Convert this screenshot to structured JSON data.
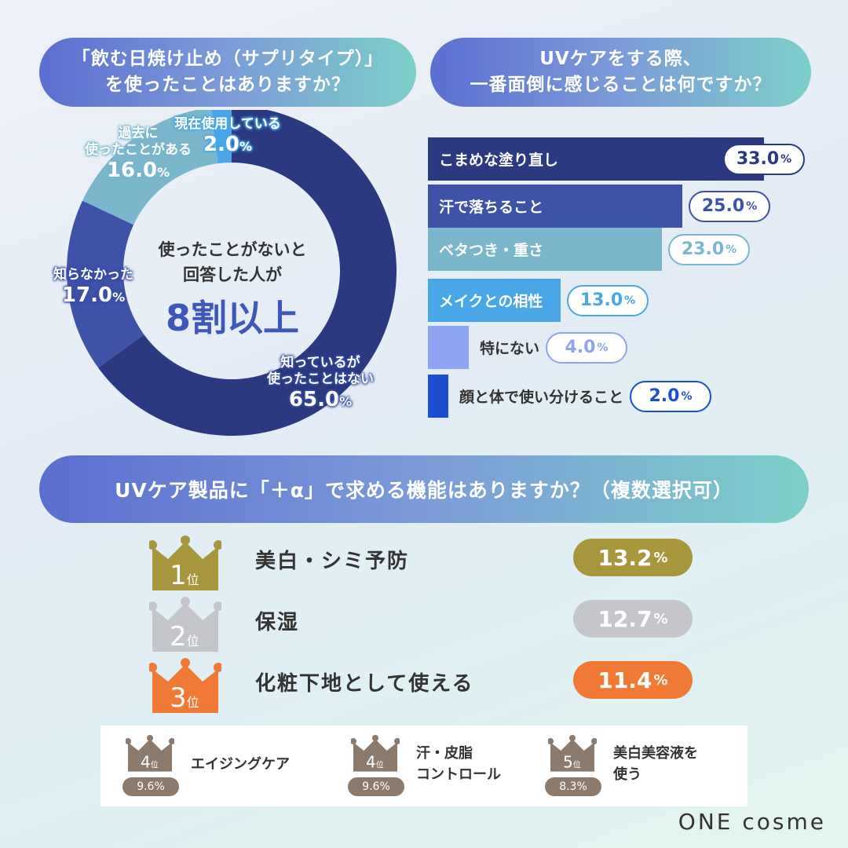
{
  "q1": {
    "title_line1": "「飲む日焼け止め（サプリタイプ）」",
    "title_line2": "を使ったことはありますか？"
  },
  "q2": {
    "title_line1": "UVケアをする際、",
    "title_line2": "一番面倒に感じることは何ですか？"
  },
  "q3": {
    "title": "UVケア製品に「＋α」で求める機能はありますか？（複数選択可）"
  },
  "donut_center": {
    "line1": "使ったことがないと",
    "line2": "回答した人が",
    "big": "8割以上"
  },
  "chart_data": [
    {
      "type": "pie",
      "title": "「飲む日焼け止め（サプリタイプ）」を使ったことはありますか？",
      "slices": [
        {
          "label_lines": [
            "知っているが",
            "使ったことはない"
          ],
          "label": "知っているが使ったことはない",
          "value": 65.0,
          "pct": "65.0",
          "color": "#2b3a80"
        },
        {
          "label_lines": [
            "知らなかった"
          ],
          "label": "知らなかった",
          "value": 17.0,
          "pct": "17.0",
          "color": "#3e52a8"
        },
        {
          "label_lines": [
            "過去に",
            "使ったことがある"
          ],
          "label": "過去に使ったことがある",
          "value": 16.0,
          "pct": "16.0",
          "color": "#7ab7cc"
        },
        {
          "label_lines": [
            "現在使用している"
          ],
          "label": "現在使用している",
          "value": 2.0,
          "pct": "2.0",
          "color": "#49a7e8"
        }
      ]
    },
    {
      "type": "bar",
      "orientation": "horizontal",
      "title": "UVケアをする際、一番面倒に感じることは何ですか？",
      "categories": [
        "こまめな塗り直し",
        "汗で落ちること",
        "ベタつき・重さ",
        "メイクとの相性",
        "特にない",
        "顔と体で使い分けること"
      ],
      "values": [
        33.0,
        25.0,
        23.0,
        13.0,
        4.0,
        2.0
      ],
      "labels": [
        "33.0",
        "25.0",
        "23.0",
        "13.0",
        "4.0",
        "2.0"
      ],
      "colors": [
        "#2b3a80",
        "#3e52a8",
        "#7ab7cc",
        "#49a7e8",
        "#8fa4f0",
        "#1b4fd0"
      ],
      "border_colors": [
        "#2b3a80",
        "#3e52a8",
        "#7ab7cc",
        "#49a7e8",
        "#8fa4f0",
        "#1b4fd0"
      ],
      "xlim": [
        0,
        33.0
      ]
    },
    {
      "type": "table",
      "title": "UVケア製品に「＋α」で求める機能はありますか？（複数選択可）",
      "top3": [
        {
          "rank": "1",
          "rank_suffix": "位",
          "item": "美白・シミ予防",
          "value": 13.2,
          "pct": "13.2",
          "color": "#a8963d"
        },
        {
          "rank": "2",
          "rank_suffix": "位",
          "item": "保湿",
          "value": 12.7,
          "pct": "12.7",
          "color": "#c4c6cb"
        },
        {
          "rank": "3",
          "rank_suffix": "位",
          "item": "化粧下地として使える",
          "value": 11.4,
          "pct": "11.4",
          "color": "#f07a35"
        }
      ],
      "others": [
        {
          "rank": "4",
          "rank_suffix": "位",
          "item_lines": [
            "エイジングケア"
          ],
          "value": 9.6,
          "pct": "9.6%"
        },
        {
          "rank": "4",
          "rank_suffix": "位",
          "item_lines": [
            "汗・皮脂",
            "コントロール"
          ],
          "value": 9.6,
          "pct": "9.6%"
        },
        {
          "rank": "5",
          "rank_suffix": "位",
          "item_lines": [
            "美白美容液を",
            "使う"
          ],
          "value": 8.3,
          "pct": "8.3%"
        }
      ]
    }
  ],
  "percent_sign": "%",
  "brand": "ONE cosme"
}
